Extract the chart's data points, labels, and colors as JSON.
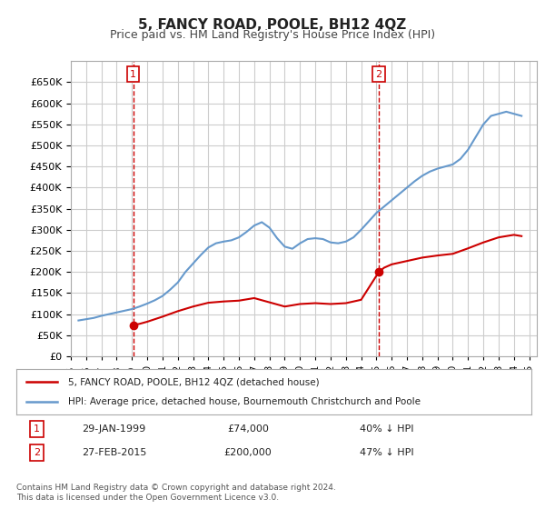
{
  "title": "5, FANCY ROAD, POOLE, BH12 4QZ",
  "subtitle": "Price paid vs. HM Land Registry's House Price Index (HPI)",
  "footer": "Contains HM Land Registry data © Crown copyright and database right 2024.\nThis data is licensed under the Open Government Licence v3.0.",
  "legend_line1": "5, FANCY ROAD, POOLE, BH12 4QZ (detached house)",
  "legend_line2": "HPI: Average price, detached house, Bournemouth Christchurch and Poole",
  "annotation1_label": "1",
  "annotation1_date": "29-JAN-1999",
  "annotation1_price": "£74,000",
  "annotation1_hpi": "40% ↓ HPI",
  "annotation2_label": "2",
  "annotation2_date": "27-FEB-2015",
  "annotation2_price": "£200,000",
  "annotation2_hpi": "47% ↓ HPI",
  "sale_color": "#cc0000",
  "hpi_color": "#6699cc",
  "background_color": "#ffffff",
  "grid_color": "#cccccc",
  "ylim": [
    0,
    700000
  ],
  "yticks": [
    0,
    50000,
    100000,
    150000,
    200000,
    250000,
    300000,
    350000,
    400000,
    450000,
    500000,
    550000,
    600000,
    650000
  ],
  "sale_dates": [
    1999.08,
    2015.16
  ],
  "sale_prices": [
    74000,
    200000
  ],
  "hpi_years": [
    1995.5,
    1996.0,
    1996.5,
    1997.0,
    1997.5,
    1998.0,
    1998.5,
    1999.0,
    1999.5,
    2000.0,
    2000.5,
    2001.0,
    2001.5,
    2002.0,
    2002.5,
    2003.0,
    2003.5,
    2004.0,
    2004.5,
    2005.0,
    2005.5,
    2006.0,
    2006.5,
    2007.0,
    2007.5,
    2008.0,
    2008.5,
    2009.0,
    2009.5,
    2010.0,
    2010.5,
    2011.0,
    2011.5,
    2012.0,
    2012.5,
    2013.0,
    2013.5,
    2014.0,
    2014.5,
    2015.0,
    2015.5,
    2016.0,
    2016.5,
    2017.0,
    2017.5,
    2018.0,
    2018.5,
    2019.0,
    2019.5,
    2020.0,
    2020.5,
    2021.0,
    2021.5,
    2022.0,
    2022.5,
    2023.0,
    2023.5,
    2024.0,
    2024.5
  ],
  "hpi_values": [
    85000,
    88000,
    91000,
    96000,
    100000,
    104000,
    108000,
    112000,
    118000,
    125000,
    133000,
    143000,
    158000,
    175000,
    200000,
    220000,
    240000,
    258000,
    268000,
    272000,
    275000,
    282000,
    295000,
    310000,
    318000,
    305000,
    280000,
    260000,
    255000,
    268000,
    278000,
    280000,
    278000,
    270000,
    268000,
    272000,
    282000,
    300000,
    320000,
    340000,
    355000,
    370000,
    385000,
    400000,
    415000,
    428000,
    438000,
    445000,
    450000,
    455000,
    468000,
    490000,
    520000,
    550000,
    570000,
    575000,
    580000,
    575000,
    570000
  ],
  "sold_line_years": [
    1999.08,
    1999.5,
    2000.0,
    2001.0,
    2002.0,
    2003.0,
    2004.0,
    2005.0,
    2006.0,
    2007.0,
    2008.0,
    2009.0,
    2010.0,
    2011.0,
    2012.0,
    2013.0,
    2014.0,
    2015.16,
    2015.5,
    2016.0,
    2017.0,
    2018.0,
    2019.0,
    2020.0,
    2021.0,
    2022.0,
    2023.0,
    2024.0,
    2024.5
  ],
  "sold_line_values": [
    74000,
    77000,
    82000,
    94000,
    107000,
    118000,
    127000,
    130000,
    132000,
    138000,
    128000,
    118000,
    124000,
    126000,
    124000,
    126000,
    134000,
    200000,
    210000,
    218000,
    226000,
    234000,
    239000,
    243000,
    256000,
    270000,
    282000,
    288000,
    285000
  ],
  "xmin": 1995,
  "xmax": 2025.5
}
